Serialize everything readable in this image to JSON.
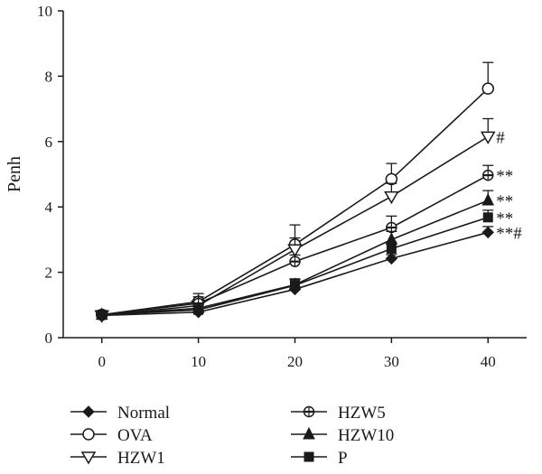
{
  "chart_data": {
    "type": "line",
    "title": "",
    "xlabel": "",
    "ylabel": "Penh",
    "x": [
      0,
      10,
      20,
      30,
      40
    ],
    "xlim": [
      -4,
      44
    ],
    "ylim": [
      0,
      10
    ],
    "xticks": [
      "0",
      "10",
      "20",
      "30",
      "40"
    ],
    "yticks": [
      "0",
      "2",
      "4",
      "6",
      "8",
      "10"
    ],
    "grid": false,
    "legend_position": "bottom",
    "series": [
      {
        "name": "Normal",
        "marker": "diamond-filled",
        "values": [
          0.68,
          0.78,
          1.48,
          2.42,
          3.22
        ],
        "err": [
          0.05,
          0.06,
          0.08,
          0.12,
          0.18
        ]
      },
      {
        "name": "OVA",
        "marker": "circle-open",
        "values": [
          0.7,
          1.1,
          2.85,
          4.85,
          7.62
        ],
        "err": [
          0.05,
          0.25,
          0.6,
          0.48,
          0.8
        ]
      },
      {
        "name": "HZW1",
        "marker": "triangle-down-open",
        "values": [
          0.68,
          0.98,
          2.7,
          4.32,
          6.15
        ],
        "err": [
          0.05,
          0.15,
          0.35,
          0.4,
          0.55
        ]
      },
      {
        "name": "HZW5",
        "marker": "circle-half",
        "values": [
          0.7,
          1.05,
          2.33,
          3.37,
          4.97
        ],
        "err": [
          0.05,
          0.2,
          0.2,
          0.35,
          0.3
        ]
      },
      {
        "name": "HZW10",
        "marker": "triangle-up-filled",
        "values": [
          0.7,
          0.9,
          1.62,
          3.0,
          4.2
        ],
        "err": [
          0.05,
          0.1,
          0.15,
          0.25,
          0.3
        ]
      },
      {
        "name": "P",
        "marker": "square-filled",
        "values": [
          0.7,
          0.85,
          1.6,
          2.72,
          3.68
        ],
        "err": [
          0.05,
          0.08,
          0.2,
          0.2,
          0.22
        ]
      }
    ],
    "annotations": [
      {
        "series": "HZW1",
        "x": 40,
        "text": "#"
      },
      {
        "series": "HZW5",
        "x": 40,
        "text": "**"
      },
      {
        "series": "HZW10",
        "x": 40,
        "text": "**"
      },
      {
        "series": "P",
        "x": 40,
        "text": "**"
      },
      {
        "series": "Normal",
        "x": 40,
        "text": "**#"
      }
    ]
  }
}
